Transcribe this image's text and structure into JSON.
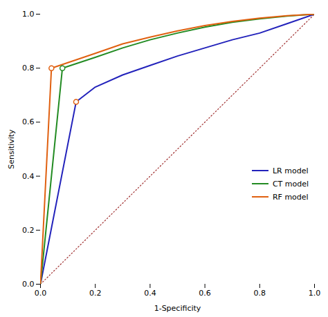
{
  "chart_data": {
    "type": "line",
    "xlabel": "1-Specificity",
    "ylabel": "Sensitivity",
    "xlim": [
      0.0,
      1.0
    ],
    "ylim": [
      0.0,
      1.0
    ],
    "xticks": [
      {
        "value": 0.0,
        "label": "0.0"
      },
      0.2,
      0.4,
      0.6,
      0.8,
      {
        "value": 1.0,
        "label": "1.0"
      }
    ],
    "yticks": [
      {
        "value": 0.0,
        "label": "0.0"
      },
      0.2,
      0.4,
      0.6,
      0.8,
      {
        "value": 1.0,
        "label": "1.0"
      }
    ],
    "legend": "lower right",
    "marker": "circle",
    "reference_line": {
      "x": [
        0,
        1
      ],
      "values": [
        0,
        1
      ],
      "color": "#a03030",
      "line_style": "dotted"
    },
    "series": [
      {
        "name": "LR model",
        "color": "#2222bb",
        "x": [
          0.0,
          0.13,
          0.2,
          0.3,
          0.4,
          0.5,
          0.6,
          0.7,
          0.8,
          0.9,
          1.0
        ],
        "values": [
          0.0,
          0.675,
          0.73,
          0.775,
          0.81,
          0.845,
          0.875,
          0.905,
          0.93,
          0.965,
          1.0
        ]
      },
      {
        "name": "CT model",
        "color": "#228B22",
        "x": [
          0.0,
          0.08,
          0.2,
          0.3,
          0.4,
          0.5,
          0.6,
          0.7,
          0.8,
          0.9,
          1.0
        ],
        "values": [
          0.0,
          0.8,
          0.84,
          0.875,
          0.905,
          0.93,
          0.952,
          0.97,
          0.983,
          0.993,
          1.0
        ]
      },
      {
        "name": "RF model",
        "color": "#E06010",
        "x": [
          0.0,
          0.04,
          0.2,
          0.3,
          0.4,
          0.5,
          0.6,
          0.7,
          0.8,
          0.9,
          1.0
        ],
        "values": [
          0.0,
          0.8,
          0.855,
          0.89,
          0.915,
          0.938,
          0.958,
          0.973,
          0.985,
          0.994,
          1.0
        ]
      }
    ],
    "markers": [
      {
        "x": 0.13,
        "y": 0.675,
        "color": "#E06010"
      },
      {
        "x": 0.08,
        "y": 0.8,
        "color": "#228B22"
      },
      {
        "x": 0.04,
        "y": 0.8,
        "color": "#E06010"
      }
    ]
  }
}
